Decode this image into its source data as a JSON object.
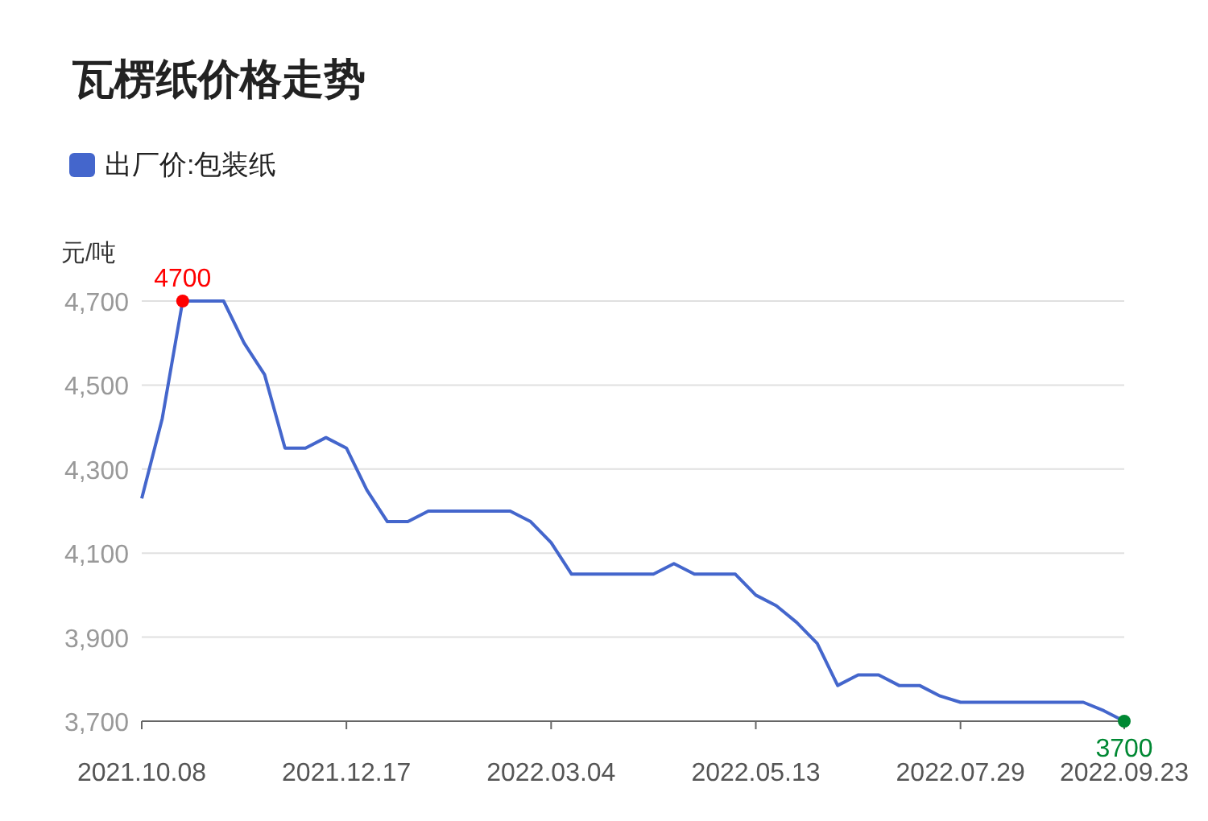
{
  "chart_data": {
    "type": "line",
    "title": "瓦楞纸价格走势",
    "ylabel": "元/吨",
    "categories": [
      "2021.10.08",
      null,
      null,
      null,
      null,
      null,
      null,
      null,
      null,
      null,
      "2021.12.17",
      null,
      null,
      null,
      null,
      null,
      null,
      null,
      null,
      null,
      "2022.03.04",
      null,
      null,
      null,
      null,
      null,
      null,
      null,
      null,
      null,
      "2022.05.13",
      null,
      null,
      null,
      null,
      null,
      null,
      null,
      null,
      null,
      "2022.07.29",
      null,
      null,
      null,
      null,
      null,
      null,
      null,
      "2022.09.23"
    ],
    "series": [
      {
        "name": "出厂价:包装纸",
        "color": "#4466cc",
        "values": [
          4230,
          4420,
          4700,
          4700,
          4700,
          4600,
          4525,
          4350,
          4350,
          4375,
          4350,
          4250,
          4175,
          4175,
          4200,
          4200,
          4200,
          4200,
          4200,
          4175,
          4125,
          4050,
          4050,
          4050,
          4050,
          4050,
          4075,
          4050,
          4050,
          4050,
          4000,
          3975,
          3935,
          3885,
          3785,
          3810,
          3810,
          3785,
          3785,
          3760,
          3745,
          3745,
          3745,
          3745,
          3745,
          3745,
          3745,
          3725,
          3700
        ],
        "value_labels": [
          null,
          null,
          "4700",
          null,
          null,
          null,
          null,
          null,
          null,
          null,
          null,
          null,
          null,
          null,
          null,
          null,
          null,
          null,
          null,
          null,
          null,
          null,
          null,
          null,
          null,
          null,
          null,
          null,
          null,
          null,
          null,
          null,
          null,
          null,
          null,
          null,
          null,
          null,
          null,
          null,
          null,
          null,
          null,
          null,
          null,
          null,
          null,
          null,
          "3700"
        ],
        "colors": [
          null,
          null,
          "#ff0000",
          null,
          null,
          null,
          null,
          null,
          null,
          null,
          null,
          null,
          null,
          null,
          null,
          null,
          null,
          null,
          null,
          null,
          null,
          null,
          null,
          null,
          null,
          null,
          null,
          null,
          null,
          null,
          null,
          null,
          null,
          null,
          null,
          null,
          null,
          null,
          null,
          null,
          null,
          null,
          null,
          null,
          null,
          null,
          null,
          null,
          "#008833"
        ]
      }
    ],
    "ylim": [
      3700,
      4700
    ],
    "yticks": [
      {
        "value": 3700,
        "label": "3,700"
      },
      {
        "value": 3900,
        "label": "3,900"
      },
      {
        "value": 4100,
        "label": "4,100"
      },
      {
        "value": 4300,
        "label": "4,300"
      },
      {
        "value": 4500,
        "label": "4,500"
      },
      {
        "value": 4700,
        "label": "4,700"
      }
    ],
    "grid": "y",
    "legend": "top left",
    "marker": "none",
    "line_style": "solid"
  }
}
